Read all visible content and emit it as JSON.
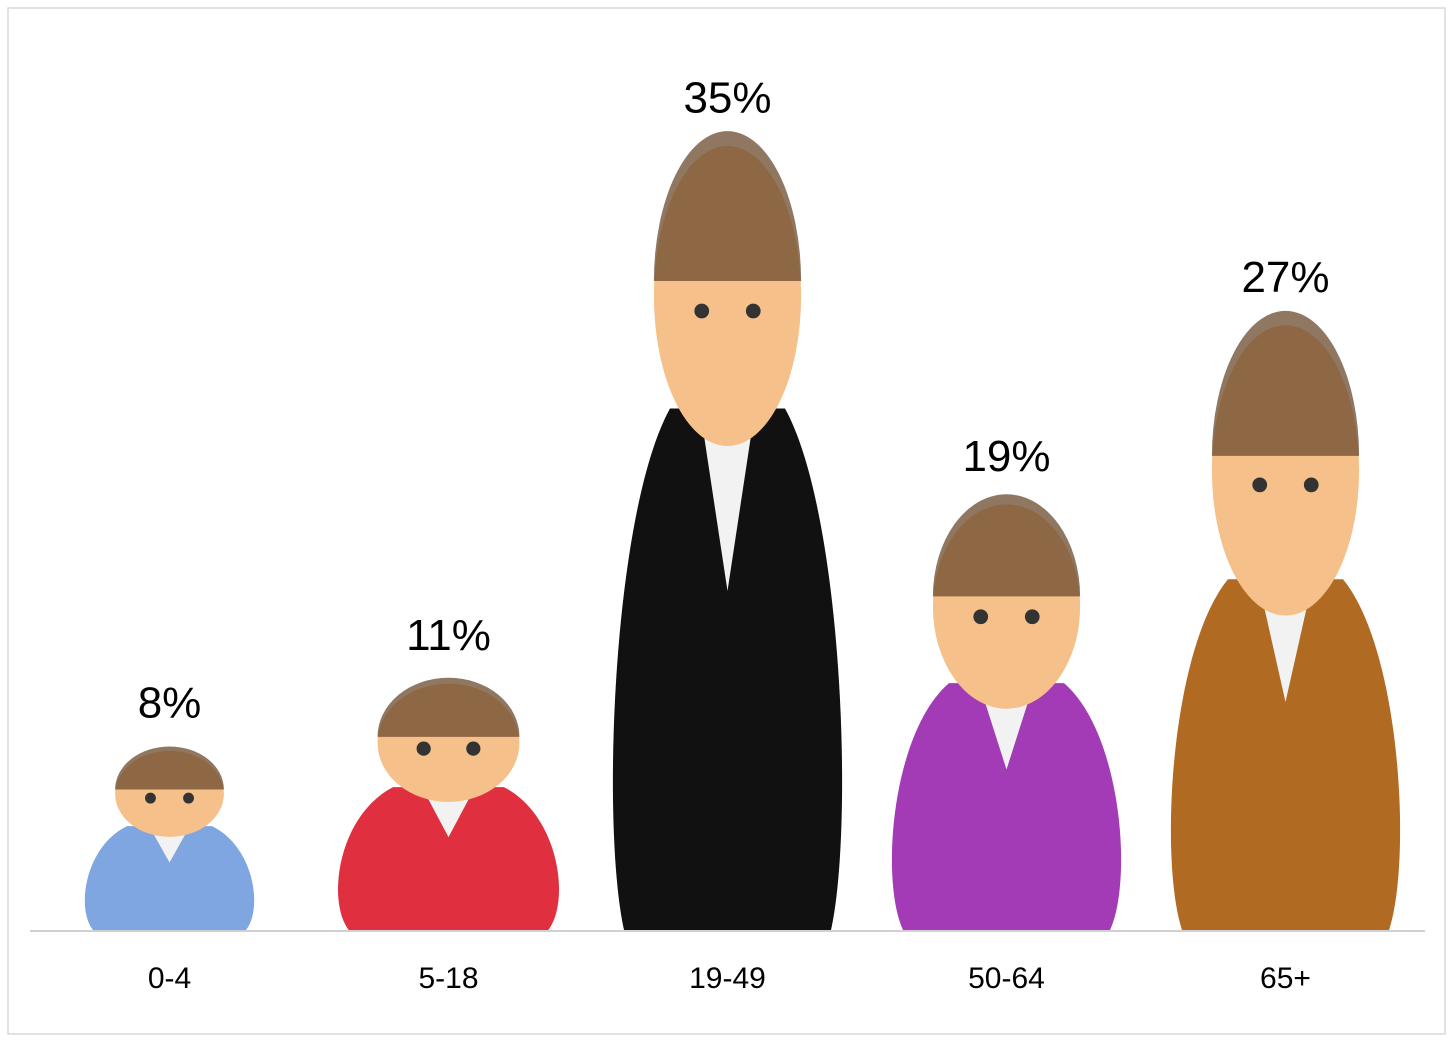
{
  "chart_data": {
    "type": "pictograph",
    "categories": [
      "0-4",
      "5-18",
      "19-49",
      "50-64",
      "65+"
    ],
    "values": [
      8,
      11,
      35,
      19,
      27
    ],
    "value_labels": [
      "8%",
      "11%",
      "35%",
      "19%",
      "27%"
    ],
    "colors": [
      "#7fa6e0",
      "#e0303f",
      "#111111",
      "#a23bb5",
      "#b06a22"
    ]
  }
}
